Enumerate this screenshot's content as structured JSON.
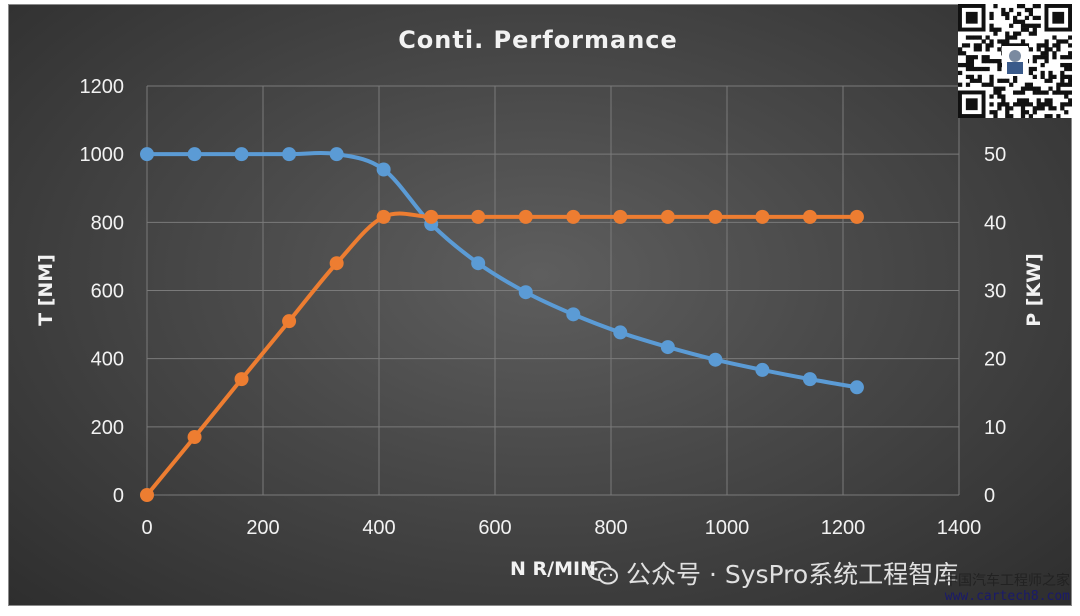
{
  "chart_data": {
    "type": "line",
    "title": "Conti. Performance",
    "xlabel": "N R/MIN",
    "ylabel_left": "T [NM]",
    "ylabel_right": "P [KW]",
    "xlim": [
      0,
      1400
    ],
    "ylim_left": [
      0,
      1200
    ],
    "ylim_right": [
      0,
      60
    ],
    "x_ticks": [
      0,
      200,
      400,
      600,
      800,
      1000,
      1200,
      1400
    ],
    "y_left_ticks": [
      0,
      200,
      400,
      600,
      800,
      1000,
      1200
    ],
    "y_right_ticks": [
      0,
      10,
      20,
      30,
      40,
      50
    ],
    "grid": true,
    "legend": "none",
    "series": [
      {
        "axis": "left",
        "color": "#5b9bd5",
        "x": [
          0,
          82,
          163,
          245,
          327,
          408,
          490,
          571,
          653,
          735,
          816,
          898,
          980,
          1061,
          1143,
          1224
        ],
        "y": [
          1000,
          1000,
          1000,
          1000,
          1000,
          955,
          795,
          680,
          595,
          530,
          477,
          434,
          397,
          367,
          340,
          316
        ]
      },
      {
        "axis": "right",
        "color": "#ed7d31",
        "x": [
          0,
          82,
          163,
          245,
          327,
          408,
          490,
          571,
          653,
          735,
          816,
          898,
          980,
          1061,
          1143,
          1224
        ],
        "y": [
          0,
          8.5,
          17,
          25.5,
          34,
          40.8,
          40.8,
          40.8,
          40.8,
          40.8,
          40.8,
          40.8,
          40.8,
          40.8,
          40.8,
          40.8
        ]
      }
    ]
  },
  "watermark": {
    "icon": "wechat-icon",
    "text": "公众号 · SysPro系统工程智库"
  },
  "site_mark": {
    "line1": "中国汽车工程师之家",
    "line2": "www.cartech8.com"
  },
  "qr": {
    "icon": "qr-code-icon"
  }
}
